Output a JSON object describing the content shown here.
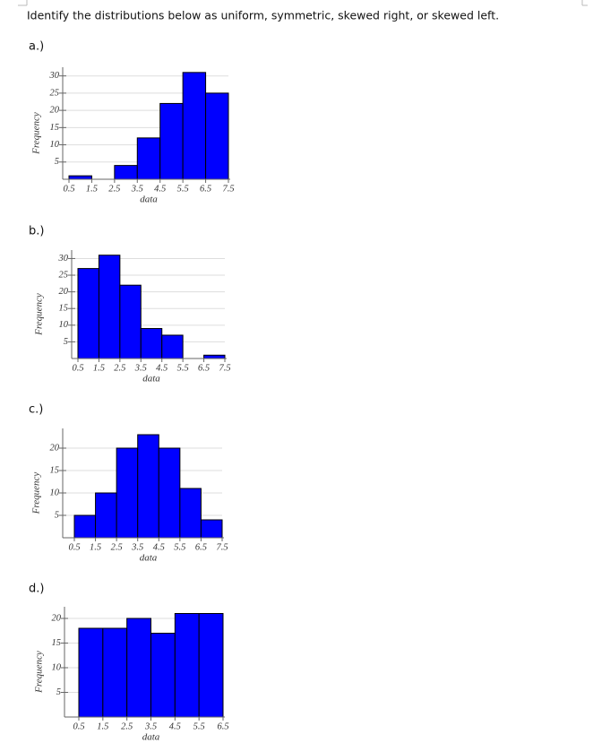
{
  "question": "Identify the distributions below as uniform, symmetric, skewed right, or skewed left.",
  "chart_data": [
    {
      "type": "histogram",
      "label": "a.)",
      "xlabel": "data",
      "ylabel": "Frequency",
      "bins": [
        0.5,
        1.5,
        2.5,
        3.5,
        4.5,
        5.5,
        6.5,
        7.5
      ],
      "values": [
        1,
        0,
        4,
        12,
        22,
        31,
        25
      ],
      "xlim": [
        0.5,
        7.5
      ],
      "xticks": [
        0.5,
        1.5,
        2.5,
        3.5,
        4.5,
        5.5,
        6.5,
        7.5
      ],
      "ylim": [
        0,
        32
      ],
      "yticks": [
        5,
        10,
        15,
        20,
        25,
        30
      ],
      "color": "#0000ff",
      "grid": true
    },
    {
      "type": "histogram",
      "label": "b.)",
      "xlabel": "data",
      "ylabel": "Frequency",
      "bins": [
        0.5,
        1.5,
        2.5,
        3.5,
        4.5,
        5.5,
        6.5,
        7.5
      ],
      "values": [
        27,
        31,
        22,
        9,
        7,
        0,
        1
      ],
      "xlim": [
        0.5,
        7.5
      ],
      "xticks": [
        0.5,
        1.5,
        2.5,
        3.5,
        4.5,
        5.5,
        6.5,
        7.5
      ],
      "ylim": [
        0,
        32
      ],
      "yticks": [
        5,
        10,
        15,
        20,
        25,
        30
      ],
      "color": "#0000ff",
      "grid": true
    },
    {
      "type": "histogram",
      "label": "c.)",
      "xlabel": "data",
      "ylabel": "Frequency",
      "bins": [
        0.5,
        1.5,
        2.5,
        3.5,
        4.5,
        5.5,
        6.5,
        7.5
      ],
      "values": [
        5,
        10,
        20,
        23,
        20,
        11,
        4
      ],
      "xlim": [
        0.5,
        7.5
      ],
      "xticks": [
        0.5,
        1.5,
        2.5,
        3.5,
        4.5,
        5.5,
        6.5,
        7.5
      ],
      "ylim": [
        0,
        24
      ],
      "yticks": [
        5,
        10,
        15,
        20
      ],
      "color": "#0000ff",
      "grid": true
    },
    {
      "type": "histogram",
      "label": "d.)",
      "xlabel": "data",
      "ylabel": "Frequency",
      "bins": [
        0.5,
        1.5,
        2.5,
        3.5,
        4.5,
        5.5,
        6.5
      ],
      "values": [
        18,
        18,
        20,
        17,
        21,
        21
      ],
      "xlim": [
        0.5,
        6.5
      ],
      "xticks": [
        0.5,
        1.5,
        2.5,
        3.5,
        4.5,
        5.5,
        6.5
      ],
      "ylim": [
        0,
        22
      ],
      "yticks": [
        5,
        10,
        15,
        20
      ],
      "color": "#0000ff",
      "grid": true
    }
  ]
}
